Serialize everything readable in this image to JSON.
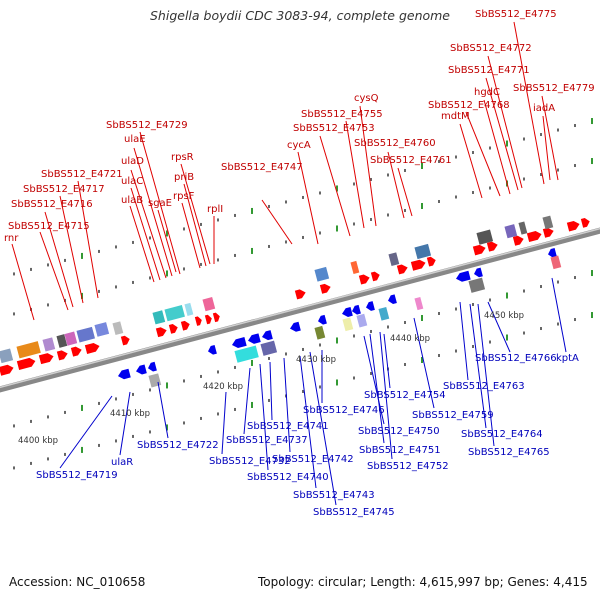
{
  "title": "Shigella boydii CDC 3083-94, complete genome",
  "accession": "Accession: NC_010658",
  "summary": "Topology: circular; Length: 4,615,997 bp; Genes: 4,415",
  "scale_labels": [
    "4400 kbp",
    "4410 kbp",
    "4420 kbp",
    "4430 kbp",
    "4440 kbp",
    "4450 kbp"
  ],
  "forward_strand_labels": [
    "rnr",
    "SbBS512_E4715",
    "SbBS512_E4716",
    "SbBS512_E4717",
    "SbBS512_E4721",
    "ulaB",
    "ulaC",
    "ulaD",
    "ulaE",
    "SbBS512_E4729",
    "sgaE",
    "rpsF",
    "priB",
    "rpsR",
    "rplI",
    "SbBS512_E4747",
    "cycA",
    "SbBS512_E4753",
    "SbBS512_E4755",
    "cysQ",
    "SbBS512_E4760",
    "SbBS512_E4761",
    "mdtM",
    "SbBS512_E4768",
    "hgdC",
    "SbBS512_E4771",
    "SbBS512_E4772",
    "SbBS512_E4775",
    "iadA",
    "SbBS512_E4779"
  ],
  "reverse_strand_labels": [
    "SbBS512_E4719",
    "ulaR",
    "SbBS512_E4722",
    "SbBS512_E4732",
    "SbBS512_E4737",
    "SbBS512_E4740",
    "SbBS512_E4741",
    "SbBS512_E4742",
    "SbBS512_E4743",
    "SbBS512_E4745",
    "SbBS512_E4746",
    "SbBS512_E4750",
    "SbBS512_E4751",
    "SbBS512_E4752",
    "SbBS512_E4754",
    "SbBS512_E4759",
    "SbBS512_E4763",
    "SbBS512_E4764",
    "SbBS512_E4765",
    "SbBS512_E4766",
    "kptA"
  ],
  "colors": {
    "forward_gene": "#ff0000",
    "reverse_gene": "#0000ee",
    "backbone": "#888888",
    "tick": "#339933"
  }
}
